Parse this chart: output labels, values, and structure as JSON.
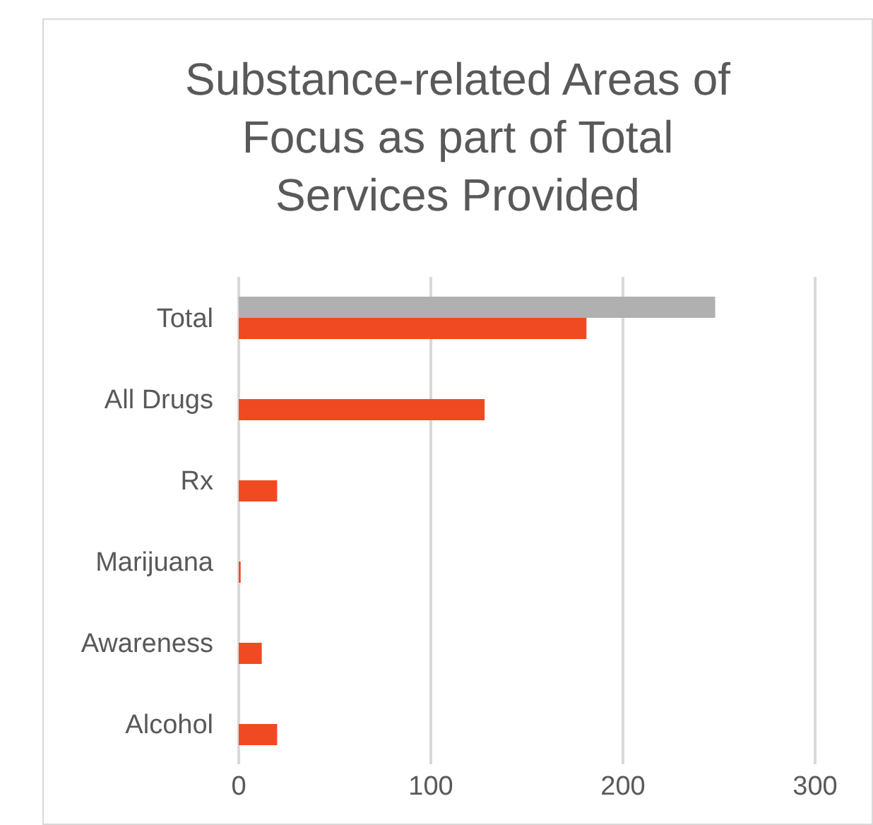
{
  "chart_data": {
    "type": "bar",
    "orientation": "horizontal",
    "title": "Substance-related Areas of Focus as part of Total Services Provided",
    "categories": [
      "Total",
      "All Drugs",
      "Rx",
      "Marijuana",
      "Awareness",
      "Alcohol"
    ],
    "series": [
      {
        "color": "#b0b0b0",
        "values": [
          248,
          null,
          null,
          null,
          null,
          null
        ]
      },
      {
        "color": "#f04a23",
        "values": [
          181,
          128,
          20,
          1,
          12,
          20
        ]
      }
    ],
    "xlim": [
      0,
      300
    ],
    "xticks": [
      0,
      100,
      200,
      300
    ],
    "grid": "x",
    "legend": false
  }
}
